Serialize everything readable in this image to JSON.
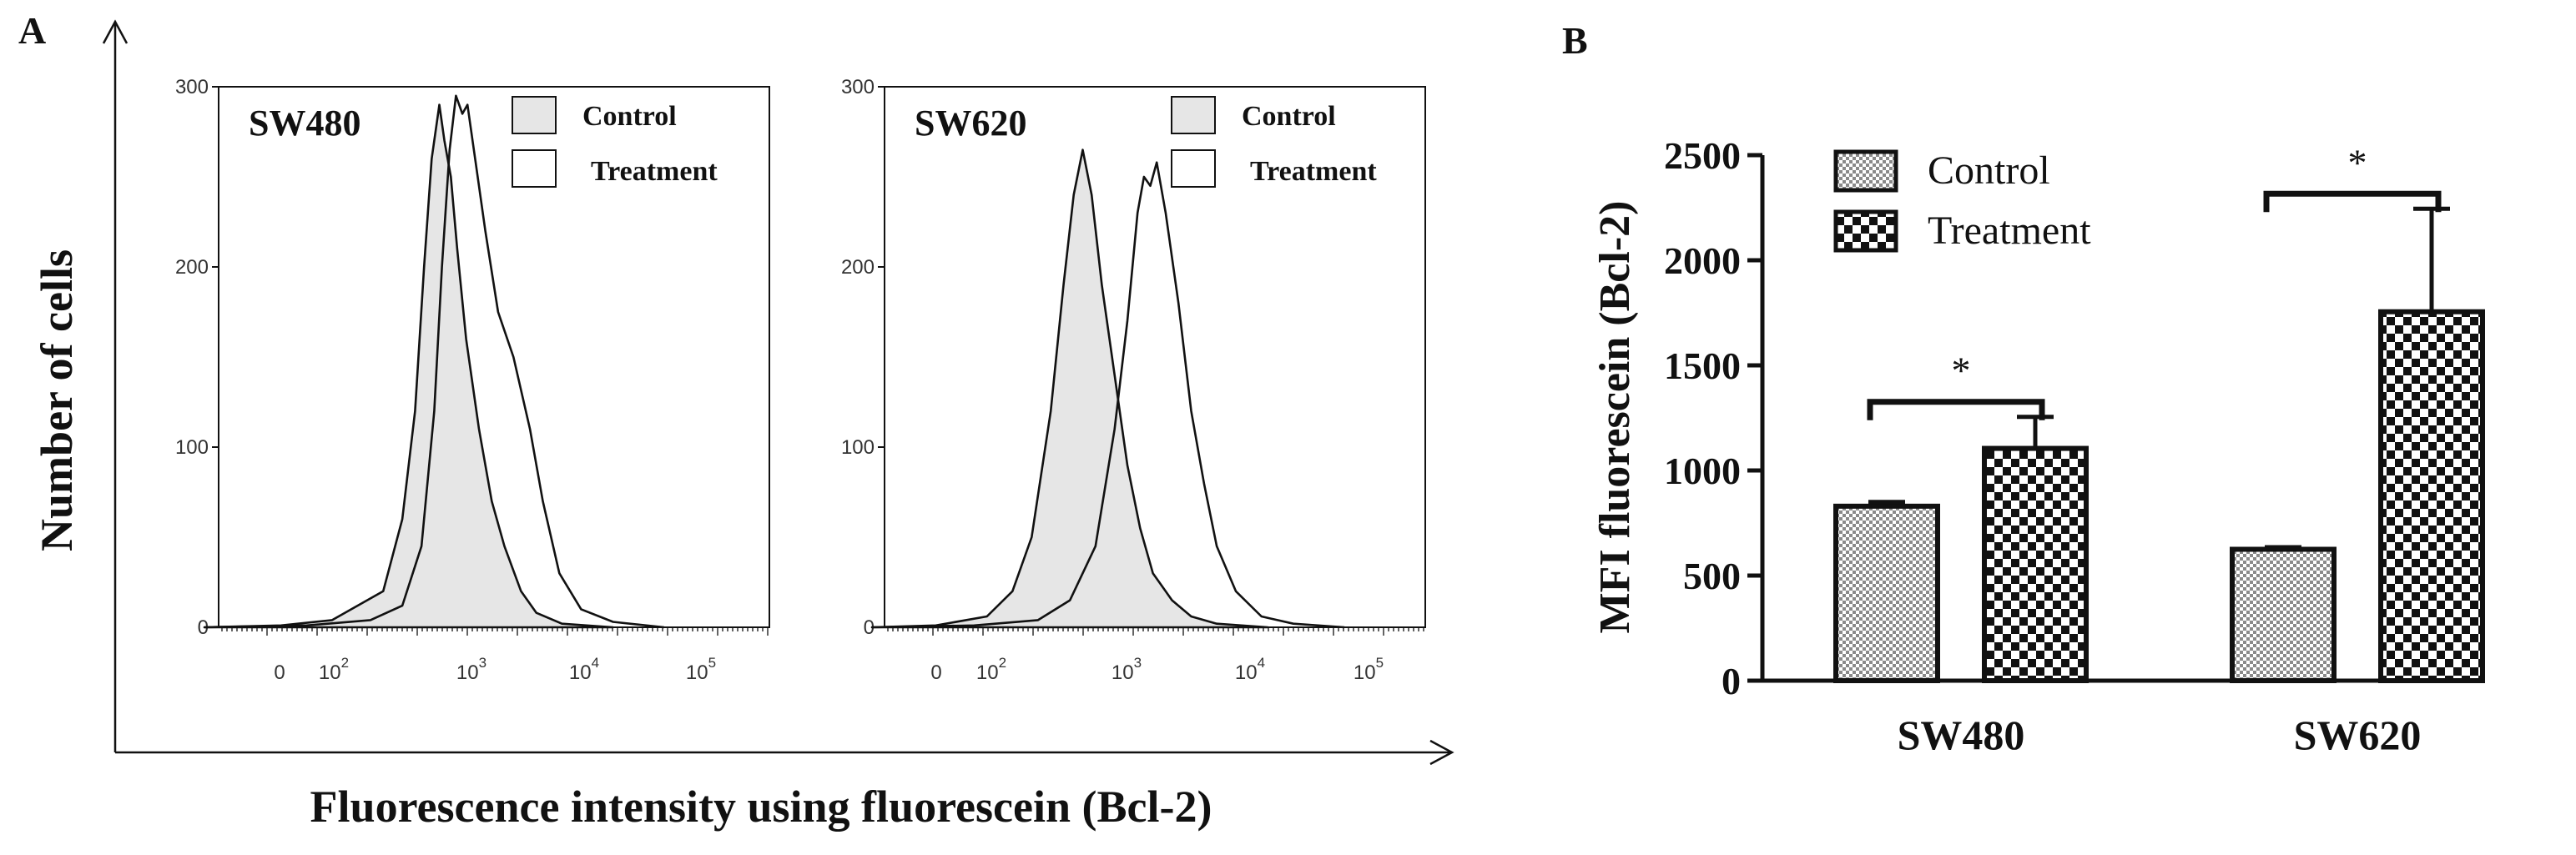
{
  "figure": {
    "panel_a_letter": "A",
    "panel_b_letter": "B",
    "panel_a_ylabel": "Number of cells",
    "panel_a_xlabel": "Fluorescence intensity using fluorescein (Bcl-2)"
  },
  "colors": {
    "control_fill": "#e6e6e6",
    "line": "#111111",
    "axis": "#111111"
  },
  "chart_data": [
    {
      "type": "histogram",
      "title": "SW480",
      "ylim": [
        0,
        300
      ],
      "yticks": [
        0,
        100,
        200,
        300
      ],
      "xticks": [
        {
          "base": "0",
          "exp": ""
        },
        {
          "base": "10",
          "exp": "2"
        },
        {
          "base": "10",
          "exp": "3"
        },
        {
          "base": "10",
          "exp": "4"
        },
        {
          "base": "10",
          "exp": "5"
        }
      ],
      "legend": [
        "Control",
        "Treatment"
      ],
      "series": [
        {
          "name": "Control",
          "points": [
            [
              1.0,
              0
            ],
            [
              1.6,
              1
            ],
            [
              2.0,
              4
            ],
            [
              2.4,
              20
            ],
            [
              2.55,
              60
            ],
            [
              2.65,
              120
            ],
            [
              2.72,
              200
            ],
            [
              2.78,
              260
            ],
            [
              2.84,
              290
            ],
            [
              2.88,
              270
            ],
            [
              2.93,
              250
            ],
            [
              2.98,
              210
            ],
            [
              3.05,
              160
            ],
            [
              3.15,
              110
            ],
            [
              3.25,
              70
            ],
            [
              3.35,
              45
            ],
            [
              3.48,
              20
            ],
            [
              3.6,
              8
            ],
            [
              3.8,
              2
            ],
            [
              4.2,
              0
            ]
          ]
        },
        {
          "name": "Treatment",
          "points": [
            [
              1.0,
              0
            ],
            [
              1.8,
              1
            ],
            [
              2.3,
              4
            ],
            [
              2.55,
              12
            ],
            [
              2.7,
              45
            ],
            [
              2.8,
              120
            ],
            [
              2.86,
              200
            ],
            [
              2.92,
              265
            ],
            [
              2.97,
              295
            ],
            [
              3.02,
              285
            ],
            [
              3.06,
              290
            ],
            [
              3.12,
              260
            ],
            [
              3.2,
              220
            ],
            [
              3.3,
              175
            ],
            [
              3.42,
              150
            ],
            [
              3.55,
              110
            ],
            [
              3.65,
              70
            ],
            [
              3.78,
              30
            ],
            [
              3.95,
              10
            ],
            [
              4.2,
              3
            ],
            [
              4.6,
              0
            ]
          ]
        }
      ]
    },
    {
      "type": "histogram",
      "title": "SW620",
      "ylim": [
        0,
        300
      ],
      "yticks": [
        0,
        100,
        200,
        300
      ],
      "xticks": [
        {
          "base": "0",
          "exp": ""
        },
        {
          "base": "10",
          "exp": "2"
        },
        {
          "base": "10",
          "exp": "3"
        },
        {
          "base": "10",
          "exp": "4"
        },
        {
          "base": "10",
          "exp": "5"
        }
      ],
      "legend": [
        "Control",
        "Treatment"
      ],
      "series": [
        {
          "name": "Control",
          "points": [
            [
              1.0,
              0
            ],
            [
              1.5,
              1
            ],
            [
              1.9,
              6
            ],
            [
              2.1,
              20
            ],
            [
              2.25,
              50
            ],
            [
              2.4,
              120
            ],
            [
              2.5,
              190
            ],
            [
              2.58,
              240
            ],
            [
              2.65,
              265
            ],
            [
              2.72,
              240
            ],
            [
              2.8,
              190
            ],
            [
              2.9,
              140
            ],
            [
              3.0,
              90
            ],
            [
              3.1,
              55
            ],
            [
              3.2,
              30
            ],
            [
              3.35,
              15
            ],
            [
              3.5,
              6
            ],
            [
              3.7,
              2
            ],
            [
              4.1,
              0
            ]
          ]
        },
        {
          "name": "Treatment",
          "points": [
            [
              1.0,
              0
            ],
            [
              1.8,
              1
            ],
            [
              2.3,
              4
            ],
            [
              2.55,
              15
            ],
            [
              2.75,
              45
            ],
            [
              2.9,
              110
            ],
            [
              3.0,
              170
            ],
            [
              3.08,
              230
            ],
            [
              3.13,
              250
            ],
            [
              3.18,
              245
            ],
            [
              3.23,
              258
            ],
            [
              3.3,
              230
            ],
            [
              3.4,
              180
            ],
            [
              3.5,
              120
            ],
            [
              3.6,
              80
            ],
            [
              3.7,
              45
            ],
            [
              3.85,
              20
            ],
            [
              4.05,
              6
            ],
            [
              4.3,
              2
            ],
            [
              4.7,
              0
            ]
          ]
        }
      ]
    },
    {
      "type": "bar",
      "ylabel": "MFI fluorescein (Bcl-2)",
      "categories": [
        "SW480",
        "SW620"
      ],
      "ylim": [
        0,
        2500
      ],
      "yticks": [
        0,
        500,
        1000,
        1500,
        2000,
        2500
      ],
      "legend": [
        "Control",
        "Treatment"
      ],
      "series": [
        {
          "name": "Control",
          "values": [
            830,
            625
          ],
          "errors": [
            20,
            10
          ]
        },
        {
          "name": "Treatment",
          "values": [
            1105,
            1755
          ],
          "errors": [
            150,
            490
          ]
        }
      ],
      "significance": [
        "*",
        "*"
      ]
    }
  ]
}
